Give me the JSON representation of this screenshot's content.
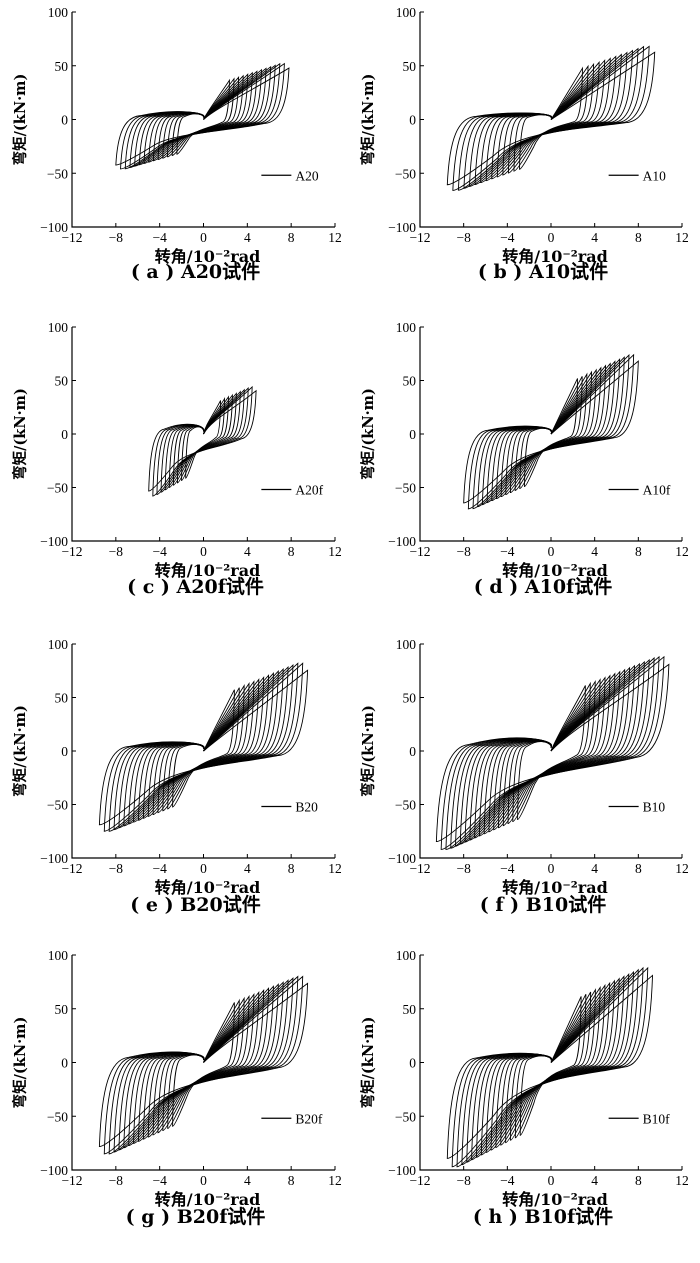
{
  "chart_data": [
    {
      "type": "line",
      "panel": "a",
      "caption": "( a ) A20试件",
      "xlabel": "转角/10⁻²rad",
      "ylabel": "弯矩/(kN·m)",
      "xlim": [
        -12,
        12
      ],
      "ylim": [
        -100,
        100
      ],
      "xticks": [
        "−12",
        "−8",
        "−4",
        "0",
        "4",
        "8",
        "12"
      ],
      "yticks": [
        "100",
        "50",
        "0",
        "−50",
        "−100"
      ],
      "legend": "A20",
      "series": [
        {
          "name": "A20",
          "cycles": 14,
          "pos_peak": [
            7.8,
            52
          ],
          "neg_peak": [
            -8.0,
            -46
          ],
          "pinch_moment": 12
        }
      ]
    },
    {
      "type": "line",
      "panel": "b",
      "caption": "( b ) A10试件",
      "xlabel": "转角/10⁻²rad",
      "ylabel": "弯矩/(kN·m)",
      "xlim": [
        -12,
        12
      ],
      "ylim": [
        -100,
        100
      ],
      "xticks": [
        "−12",
        "−8",
        "−4",
        "0",
        "4",
        "8",
        "12"
      ],
      "yticks": [
        "100",
        "50",
        "0",
        "−50",
        "−100"
      ],
      "legend": "A10",
      "series": [
        {
          "name": "A10",
          "cycles": 14,
          "pos_peak": [
            9.5,
            68
          ],
          "neg_peak": [
            -9.5,
            -66
          ],
          "pinch_moment": 10
        }
      ]
    },
    {
      "type": "line",
      "panel": "c",
      "caption": "( c ) A20f试件",
      "xlabel": "转角/10⁻²rad",
      "ylabel": "弯矩/(kN·m)",
      "xlim": [
        -12,
        12
      ],
      "ylim": [
        -100,
        100
      ],
      "xticks": [
        "−12",
        "−8",
        "−4",
        "0",
        "4",
        "8",
        "12"
      ],
      "yticks": [
        "100",
        "50",
        "0",
        "−50",
        "−100"
      ],
      "legend": "A20f",
      "series": [
        {
          "name": "A20f",
          "cycles": 10,
          "pos_peak": [
            4.8,
            44
          ],
          "neg_peak": [
            -5.0,
            -58
          ],
          "pinch_moment": 15
        }
      ]
    },
    {
      "type": "line",
      "panel": "d",
      "caption": "( d ) A10f试件",
      "xlabel": "转角/10⁻²rad",
      "ylabel": "弯矩/(kN·m)",
      "xlim": [
        -12,
        12
      ],
      "ylim": [
        -100,
        100
      ],
      "xticks": [
        "−12",
        "−8",
        "−4",
        "0",
        "4",
        "8",
        "12"
      ],
      "yticks": [
        "100",
        "50",
        "0",
        "−50",
        "−100"
      ],
      "legend": "A10f",
      "series": [
        {
          "name": "A10f",
          "cycles": 14,
          "pos_peak": [
            8.0,
            74
          ],
          "neg_peak": [
            -8.0,
            -70
          ],
          "pinch_moment": 12
        }
      ]
    },
    {
      "type": "line",
      "panel": "e",
      "caption": "( e ) B20试件",
      "xlabel": "转角/10⁻²rad",
      "ylabel": "弯矩/(kN·m)",
      "xlim": [
        -12,
        12
      ],
      "ylim": [
        -100,
        100
      ],
      "xticks": [
        "−12",
        "−8",
        "−4",
        "0",
        "4",
        "8",
        "12"
      ],
      "yticks": [
        "100",
        "50",
        "0",
        "−50",
        "−100"
      ],
      "legend": "B20",
      "series": [
        {
          "name": "B20",
          "cycles": 16,
          "pos_peak": [
            9.5,
            82
          ],
          "neg_peak": [
            -9.5,
            -75
          ],
          "pinch_moment": 14
        }
      ]
    },
    {
      "type": "line",
      "panel": "f",
      "caption": "( f ) B10试件",
      "xlabel": "转角/10⁻²rad",
      "ylabel": "弯矩/(kN·m)",
      "xlim": [
        -12,
        12
      ],
      "ylim": [
        -100,
        100
      ],
      "xticks": [
        "−12",
        "−8",
        "−4",
        "0",
        "4",
        "8",
        "12"
      ],
      "yticks": [
        "100",
        "50",
        "0",
        "−50",
        "−100"
      ],
      "legend": "B10",
      "series": [
        {
          "name": "B10",
          "cycles": 18,
          "pos_peak": [
            10.8,
            88
          ],
          "neg_peak": [
            -10.5,
            -92
          ],
          "pinch_moment": 20
        }
      ]
    },
    {
      "type": "line",
      "panel": "g",
      "caption": "( g ) B20f试件",
      "xlabel": "转角/10⁻²rad",
      "ylabel": "弯矩/(kN·m)",
      "xlim": [
        -12,
        12
      ],
      "ylim": [
        -100,
        100
      ],
      "xticks": [
        "−12",
        "−8",
        "−4",
        "0",
        "4",
        "8",
        "12"
      ],
      "yticks": [
        "100",
        "50",
        "0",
        "−50",
        "−100"
      ],
      "legend": "B20f",
      "series": [
        {
          "name": "B20f",
          "cycles": 16,
          "pos_peak": [
            9.5,
            80
          ],
          "neg_peak": [
            -9.5,
            -85
          ],
          "pinch_moment": 16
        }
      ]
    },
    {
      "type": "line",
      "panel": "h",
      "caption": "( h ) B10f试件",
      "xlabel": "转角/10⁻²rad",
      "ylabel": "弯矩/(kN·m)",
      "xlim": [
        -12,
        12
      ],
      "ylim": [
        -100,
        100
      ],
      "xticks": [
        "−12",
        "−8",
        "−4",
        "0",
        "4",
        "8",
        "12"
      ],
      "yticks": [
        "100",
        "50",
        "0",
        "−50",
        "−100"
      ],
      "legend": "B10f",
      "series": [
        {
          "name": "B10f",
          "cycles": 16,
          "pos_peak": [
            9.3,
            88
          ],
          "neg_peak": [
            -9.5,
            -97
          ],
          "pinch_moment": 14
        }
      ]
    }
  ]
}
